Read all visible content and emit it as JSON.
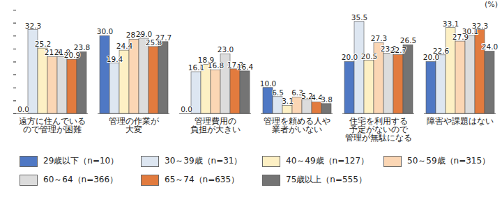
{
  "chart_data": {
    "type": "bar",
    "y_label": "(%)",
    "categories": [
      "遠方に住んでいる\nので管理が困難",
      "管理の作業が\n大変",
      "管理費用の\n負担が大きい",
      "管理を頼める人や\n業者がいない",
      "住宅を利用する\n予定がないので\n管理が無駄になる",
      "障害や課題はない"
    ],
    "series": [
      {
        "name": "29歳以下（n=10）",
        "color": "#4f78c4",
        "values": [
          0.0,
          30.0,
          0.0,
          10.0,
          20.0,
          20.0
        ],
        "value_labels": [
          "0.0",
          "30.0",
          "0.0",
          "10.0",
          "20.0",
          "20.0"
        ]
      },
      {
        "name": "30～39歳（n=31）",
        "color": "#dde6f1",
        "values": [
          32.3,
          19.4,
          16.1,
          6.5,
          35.5,
          22.6
        ],
        "value_labels": [
          "32.3",
          "19.4",
          "16.1",
          "6.5",
          "35.5",
          "22.6"
        ]
      },
      {
        "name": "40～49歳（n=127）",
        "color": "#fdf0c4",
        "values": [
          25.2,
          24.4,
          18.9,
          3.1,
          20.5,
          33.1
        ],
        "value_labels": [
          "25.2",
          "24.4",
          "18.9",
          "3.1",
          "20.5",
          "33.1"
        ]
      },
      {
        "name": "50～59歳（n=315）",
        "color": "#fbd6b4",
        "values": [
          21.9,
          28.6,
          16.8,
          6.3,
          27.3,
          27.9
        ],
        "value_labels": [
          "21.9",
          "28.6",
          "16.8",
          "6.3",
          "27.3",
          "27.9"
        ]
      },
      {
        "name": "60～64（n=366）",
        "color": "#dcdcdc",
        "values": [
          21.9,
          29.0,
          23.0,
          5.2,
          23.2,
          30.1
        ],
        "value_labels": [
          "21.9",
          "29.0",
          "23.0",
          "5.2",
          "23.2",
          "30.1"
        ]
      },
      {
        "name": "65～74（n=635）",
        "color": "#e27b3e",
        "values": [
          20.9,
          25.8,
          17.2,
          4.4,
          22.7,
          32.3
        ],
        "value_labels": [
          "20.9",
          "25.8",
          "17.2",
          "4.4",
          "22.7",
          "32.3"
        ]
      },
      {
        "name": "75歳以上（n=555）",
        "color": "#747474",
        "values": [
          23.8,
          27.7,
          16.4,
          3.8,
          26.5,
          24.0
        ],
        "value_labels": [
          "23.8",
          "27.7",
          "16.4",
          "3.8",
          "26.5",
          "24.0"
        ]
      }
    ],
    "ylim": [
      0,
      40
    ],
    "yticks": [
      0,
      5,
      10,
      15,
      20,
      25,
      30,
      35,
      40
    ],
    "tick_labels": "x",
    "grid": false,
    "data_labels": true,
    "legend": "bottom"
  }
}
